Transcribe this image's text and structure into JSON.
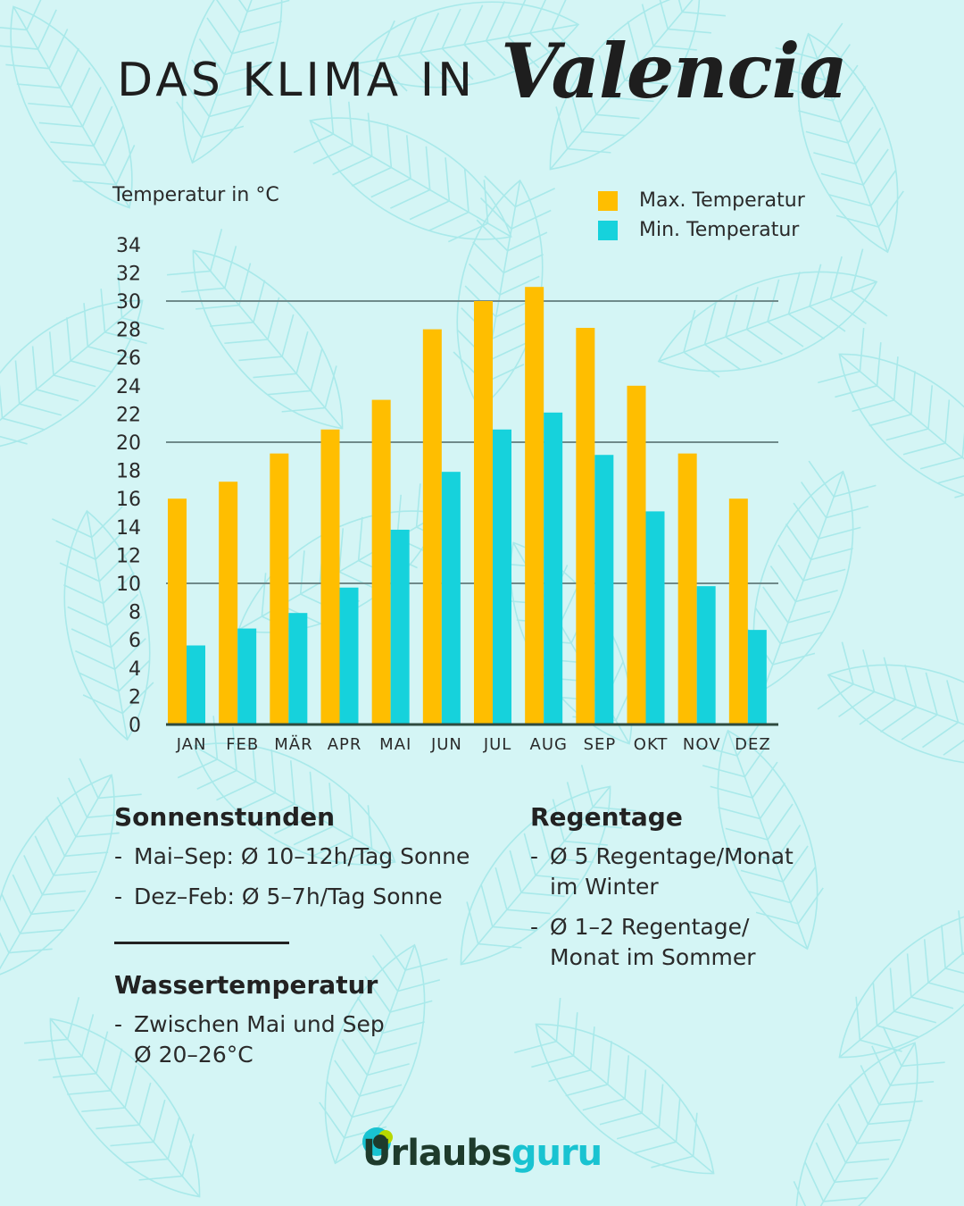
{
  "header": {
    "title_prefix": "DAS KLIMA IN",
    "title_city": "Valencia"
  },
  "chart_data": {
    "type": "bar",
    "ylabel": "Temperatur in °C",
    "categories": [
      "JAN",
      "FEB",
      "MÄR",
      "APR",
      "MAI",
      "JUN",
      "JUL",
      "AUG",
      "SEP",
      "OKT",
      "NOV",
      "DEZ"
    ],
    "series": [
      {
        "name": "Max. Temperatur",
        "values": [
          16,
          17.2,
          19.2,
          20.9,
          23,
          28,
          30,
          31,
          28.1,
          24,
          19.2,
          16
        ],
        "color": "#ffbe00"
      },
      {
        "name": "Min. Temperatur",
        "values": [
          5.6,
          6.8,
          7.9,
          9.7,
          13.8,
          17.9,
          20.9,
          22.1,
          19.1,
          15.1,
          9.8,
          6.7
        ],
        "color": "#16d2dc"
      }
    ],
    "ylim": [
      0,
      34
    ],
    "yticks": [
      "0",
      "2",
      "4",
      "6",
      "8",
      "10",
      "12",
      "14",
      "16",
      "18",
      "20",
      "22",
      "24",
      "26",
      "28",
      "30",
      "32",
      "34"
    ],
    "gridlines_at": [
      10,
      20,
      30
    ],
    "grid": true,
    "legend_position": "top-right"
  },
  "info": {
    "sun": {
      "title": "Sonnenstunden",
      "items": [
        "Mai–Sep: Ø 10–12h/Tag Sonne",
        "Dez–Feb: Ø 5–7h/Tag Sonne"
      ]
    },
    "water": {
      "title": "Wassertemperatur",
      "item_line1": "Zwischen Mai und Sep",
      "item_line2": "Ø 20–26°C"
    },
    "rain": {
      "title": "Regentage",
      "item1_line1": "Ø 5 Regentage/Monat",
      "item1_line2": "im Winter",
      "item2_line1": "Ø 1–2 Regentage/",
      "item2_line2": "Monat im Sommer"
    },
    "dash": "-"
  },
  "footer": {
    "logo_part1": "Urlaubs",
    "logo_part2": "guru",
    "logo_color_dark": "#1e3b2c",
    "logo_color_accent": "#19c3d1"
  },
  "colors": {
    "background": "#d4f5f5",
    "leaf_pattern": "#a9e9ea",
    "max": "#ffbe00",
    "min": "#16d2dc"
  }
}
